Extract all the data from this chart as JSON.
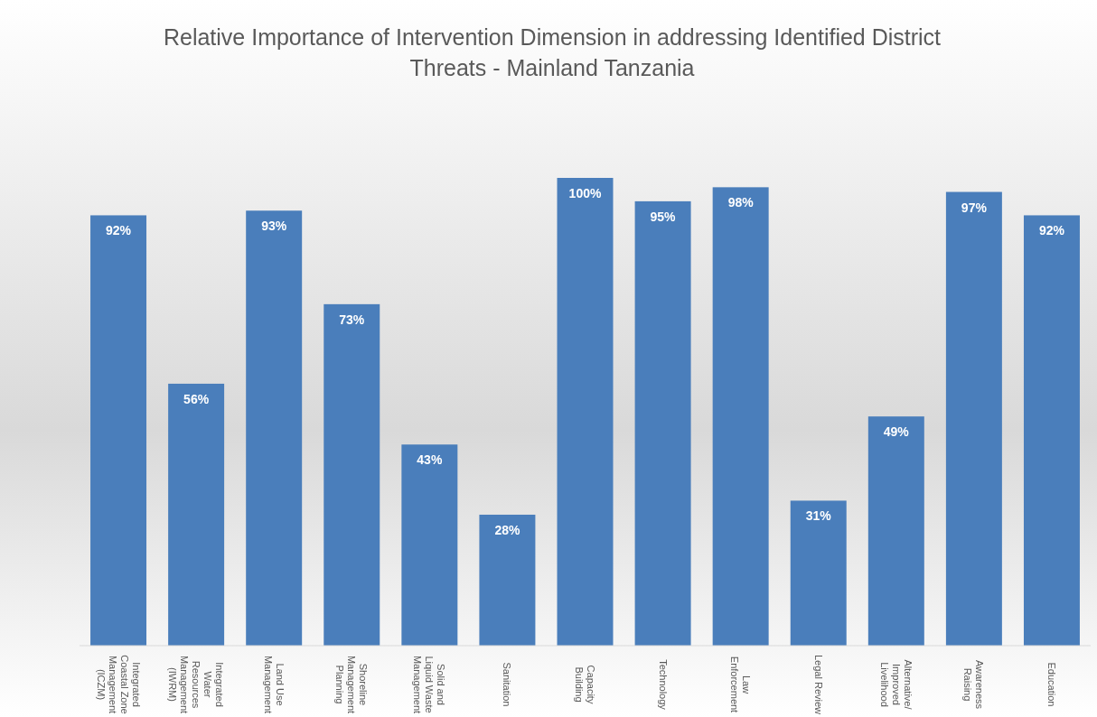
{
  "chart_data": {
    "type": "bar",
    "title": "Relative Importance of Intervention Dimension in addressing Identified District Threats - Mainland Tanzania",
    "categories": [
      "Integrated Coastal Zone Management (ICZM)",
      "Integrated Water Resources Management (IWRM)",
      "Land Use Management",
      "Shoreline Management Planning",
      "Solid and Liquid Waste Management",
      "Sanitation",
      "Capacity Building",
      "Technology",
      "Law Enforcement",
      "Legal Review",
      "Alternative/ Improved Livelihood",
      "Awareness Raising",
      "Education"
    ],
    "values": [
      92,
      56,
      93,
      73,
      43,
      28,
      100,
      95,
      98,
      31,
      49,
      97,
      92
    ],
    "value_labels": [
      "92%",
      "56%",
      "93%",
      "73%",
      "43%",
      "28%",
      "100%",
      "95%",
      "98%",
      "31%",
      "49%",
      "97%",
      "92%"
    ],
    "color": "#4a7ebb"
  }
}
